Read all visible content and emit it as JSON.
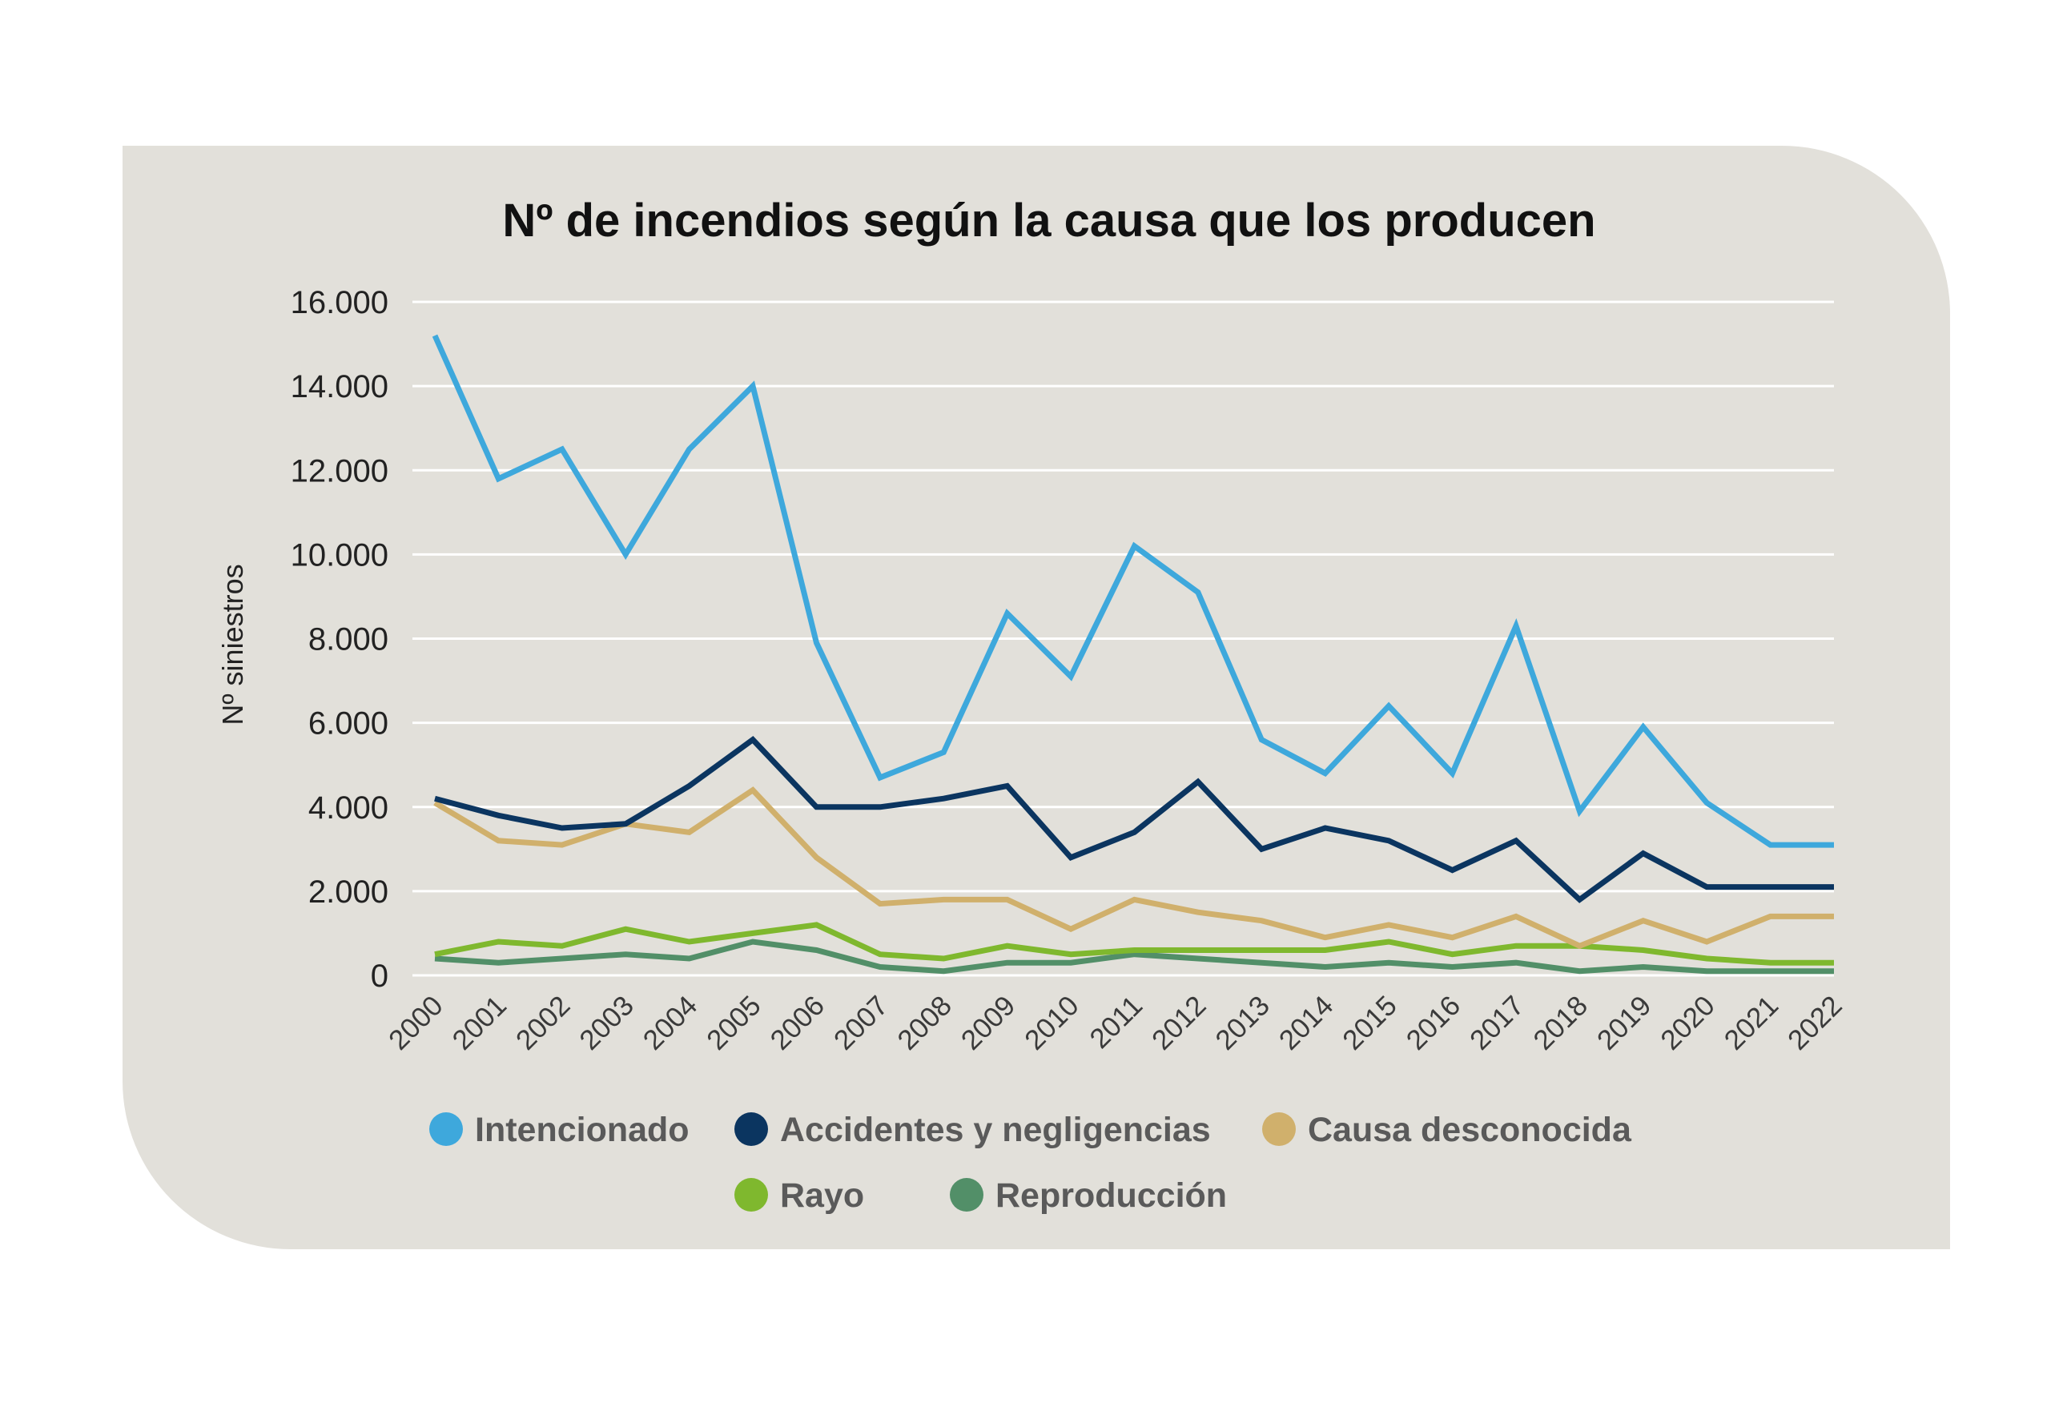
{
  "chart_data": {
    "type": "line",
    "title": "Nº de incendios según la causa que los producen",
    "xlabel": "",
    "ylabel": "Nº siniestros",
    "ylim": [
      0,
      16000
    ],
    "yticks": [
      0,
      2000,
      4000,
      6000,
      8000,
      10000,
      12000,
      14000,
      16000
    ],
    "ytick_labels": [
      "0",
      "2.000",
      "4.000",
      "6.000",
      "8.000",
      "10.000",
      "12.000",
      "14.000",
      "16.000"
    ],
    "grid": "horizontal",
    "legend_position": "bottom",
    "categories": [
      "2000",
      "2001",
      "2002",
      "2003",
      "2004",
      "2005",
      "2006",
      "2007",
      "2008",
      "2009",
      "2010",
      "2011",
      "2012",
      "2013",
      "2014",
      "2015",
      "2016",
      "2017",
      "2018",
      "2019",
      "2020",
      "2021",
      "2022"
    ],
    "series": [
      {
        "name": "Intencionado",
        "color": "#3ea8dc",
        "values": [
          15200,
          11800,
          12500,
          10000,
          12500,
          14000,
          7900,
          4700,
          5300,
          8600,
          7100,
          10200,
          9100,
          5600,
          4800,
          6400,
          4800,
          8300,
          3900,
          5900,
          4100,
          3100,
          3100
        ]
      },
      {
        "name": "Accidentes y negligencias",
        "color": "#0b3560",
        "values": [
          4200,
          3800,
          3500,
          3600,
          4500,
          5600,
          4000,
          4000,
          4200,
          4500,
          2800,
          3400,
          4600,
          3000,
          3500,
          3200,
          2500,
          3200,
          1800,
          2900,
          2100,
          2100,
          2100
        ]
      },
      {
        "name": "Causa desconocida",
        "color": "#d0b06c",
        "values": [
          4100,
          3200,
          3100,
          3600,
          3400,
          4400,
          2800,
          1700,
          1800,
          1800,
          1100,
          1800,
          1500,
          1300,
          900,
          1200,
          900,
          1400,
          700,
          1300,
          800,
          1400,
          1400
        ]
      },
      {
        "name": "Rayo",
        "color": "#7fb82e",
        "values": [
          500,
          800,
          700,
          1100,
          800,
          1000,
          1200,
          500,
          400,
          700,
          500,
          600,
          600,
          600,
          600,
          800,
          500,
          700,
          700,
          600,
          400,
          300,
          300
        ]
      },
      {
        "name": "Reproducción",
        "color": "#528f68",
        "values": [
          400,
          300,
          400,
          500,
          400,
          800,
          600,
          200,
          100,
          300,
          300,
          500,
          400,
          300,
          200,
          300,
          200,
          300,
          100,
          200,
          100,
          100,
          100
        ]
      }
    ]
  }
}
